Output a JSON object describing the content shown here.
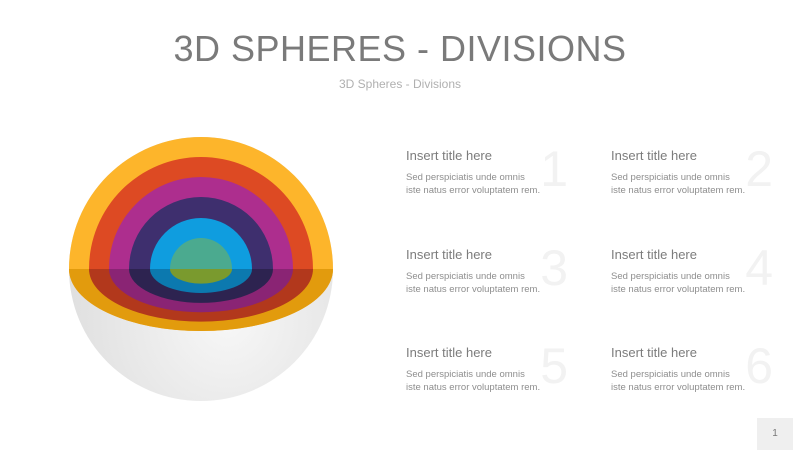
{
  "header": {
    "title": "3D SPHERES - DIVISIONS",
    "subtitle": "3D Spheres - Divisions"
  },
  "sphere": {
    "layers": [
      {
        "top": "#FDB52B",
        "bottom": "#E29B0D"
      },
      {
        "top": "#DD4A23",
        "bottom": "#B2381C"
      },
      {
        "top": "#AD2E8E",
        "bottom": "#8A2474"
      },
      {
        "top": "#3E2F6E",
        "bottom": "#2D2350"
      },
      {
        "top": "#0F9DDF",
        "bottom": "#0C79AF"
      },
      {
        "top": "#4BAA8F",
        "bottom": "#7A9A2E"
      }
    ],
    "shell": "#eeeeee"
  },
  "items": [
    {
      "number": "1",
      "title": "Insert title here",
      "desc1": "Sed perspiciatis unde omnis",
      "desc2": "iste natus error voluptatem rem."
    },
    {
      "number": "2",
      "title": "Insert title here",
      "desc1": "Sed perspiciatis unde omnis",
      "desc2": "iste natus error voluptatem rem."
    },
    {
      "number": "3",
      "title": "Insert title here",
      "desc1": "Sed perspiciatis unde omnis",
      "desc2": "iste natus error voluptatem rem."
    },
    {
      "number": "4",
      "title": "Insert title here",
      "desc1": "Sed perspiciatis unde omnis",
      "desc2": "iste natus error voluptatem rem."
    },
    {
      "number": "5",
      "title": "Insert title here",
      "desc1": "Sed perspiciatis unde omnis",
      "desc2": "iste natus error voluptatem rem."
    },
    {
      "number": "6",
      "title": "Insert title here",
      "desc1": "Sed perspiciatis unde omnis",
      "desc2": "iste natus error voluptatem rem."
    }
  ],
  "footer": {
    "page_number": "1"
  }
}
